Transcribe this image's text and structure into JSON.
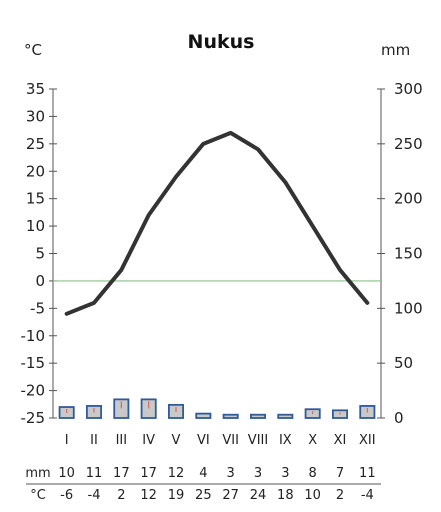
{
  "chart_data": {
    "type": "climate-diagram",
    "title": "Nukus",
    "left_unit": "°C",
    "right_unit": "mm",
    "left_axis": {
      "ylim": [
        -25,
        35
      ],
      "ticks": [
        35,
        30,
        25,
        20,
        15,
        10,
        5,
        0,
        -5,
        -10,
        -15,
        -20,
        -25
      ]
    },
    "right_axis": {
      "ylim": [
        0,
        300
      ],
      "ticks": [
        300,
        250,
        200,
        150,
        100,
        50,
        0
      ]
    },
    "months": [
      "I",
      "II",
      "III",
      "IV",
      "V",
      "VI",
      "VII",
      "VIII",
      "IX",
      "X",
      "XI",
      "XII"
    ],
    "series": [
      {
        "name": "mm",
        "kind": "bar",
        "axis": "right",
        "values": [
          10,
          11,
          17,
          17,
          12,
          4,
          3,
          3,
          3,
          8,
          7,
          11
        ]
      },
      {
        "name": "°C",
        "kind": "line",
        "axis": "left",
        "values": [
          -6,
          -4,
          2,
          12,
          19,
          25,
          27,
          24,
          18,
          10,
          2,
          -4
        ]
      }
    ],
    "table": {
      "row_labels": [
        "mm",
        "°C"
      ],
      "rows": [
        [
          "10",
          "11",
          "17",
          "17",
          "12",
          "4",
          "3",
          "3",
          "3",
          "8",
          "7",
          "11"
        ],
        [
          "-6",
          "-4",
          "2",
          "12",
          "19",
          "25",
          "27",
          "24",
          "18",
          "10",
          "2",
          "-4"
        ]
      ]
    },
    "colors": {
      "line": "#333333",
      "bar_fill": "#c9c9c9",
      "bar_stroke": "#2f5b9a",
      "bar_whisker": "#d06a6a",
      "zero_line": "#8cc08c",
      "axis": "#555555"
    },
    "grid": false
  }
}
